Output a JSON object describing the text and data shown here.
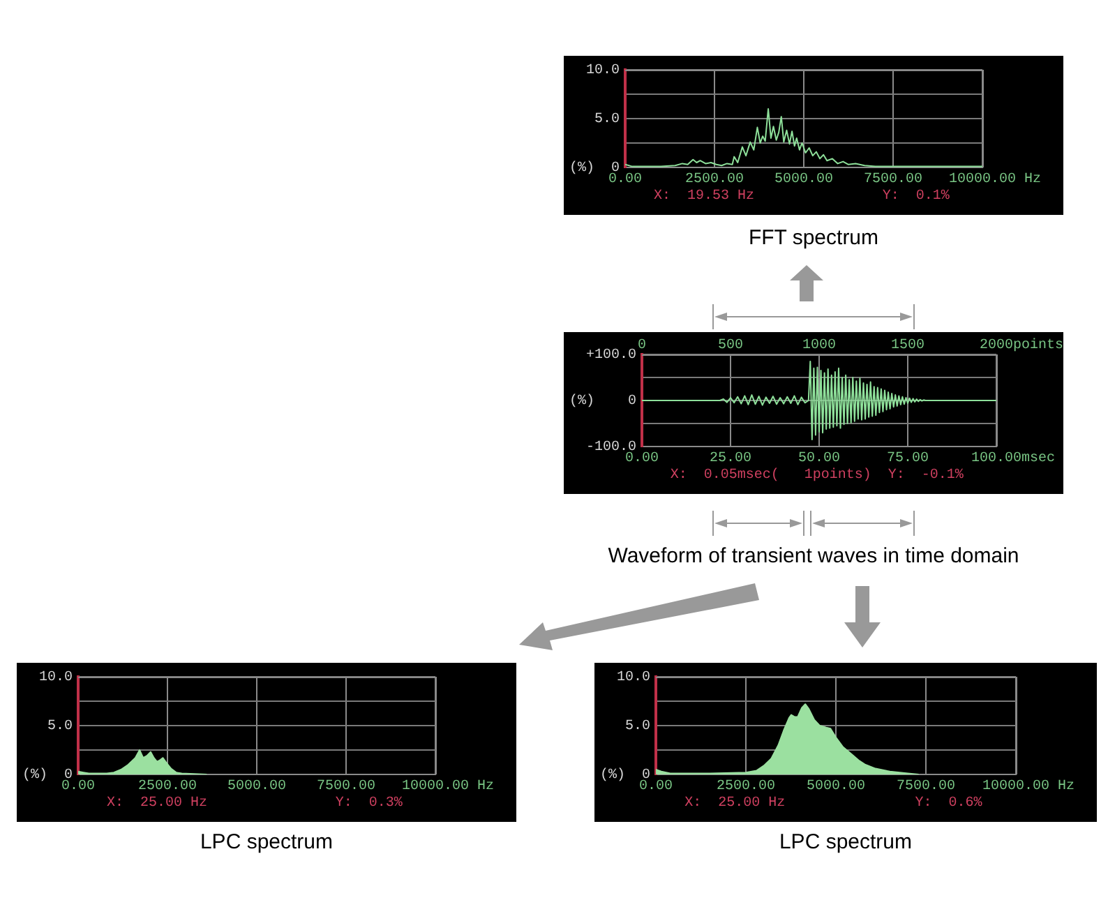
{
  "chart_data": [
    {
      "type": "line",
      "title": "FFT spectrum",
      "ylabel": "(%)",
      "xlabel": "Hz",
      "grid": true,
      "xlim": [
        0,
        10000
      ],
      "ylim": [
        0,
        10
      ],
      "xticks": [
        {
          "value": 0,
          "label": "0.00"
        },
        {
          "value": 2500,
          "label": "2500.00"
        },
        {
          "value": 5000,
          "label": "5000.00"
        },
        {
          "value": 7500,
          "label": "7500.00"
        },
        {
          "value": 10000,
          "label": "10000.00"
        }
      ],
      "yticks": [
        {
          "value": 0,
          "label": "0"
        },
        {
          "value": 2.5,
          "label": null
        },
        {
          "value": 5,
          "label": "5.0"
        },
        {
          "value": 7.5,
          "label": null
        },
        {
          "value": 10,
          "label": "10.0"
        }
      ],
      "annotations": [
        "X:  19.53 Hz",
        "Y:  0.1%"
      ],
      "series": [
        {
          "color": "#8ee09a",
          "x": [
            0,
            200,
            600,
            1000,
            1400,
            1600,
            1750,
            1900,
            2000,
            2100,
            2250,
            2400,
            2550,
            2700,
            2850,
            3000,
            3050,
            3150,
            3280,
            3380,
            3500,
            3600,
            3700,
            3780,
            3850,
            3920,
            4005,
            4080,
            4150,
            4230,
            4300,
            4370,
            4440,
            4520,
            4600,
            4670,
            4740,
            4800,
            4880,
            4950,
            5050,
            5150,
            5250,
            5350,
            5450,
            5550,
            5650,
            5800,
            5950,
            6100,
            6250,
            6450,
            6700,
            7000,
            8000,
            10000
          ],
          "values": [
            0.3,
            0.1,
            0.1,
            0.1,
            0.2,
            0.4,
            0.3,
            0.8,
            0.5,
            0.7,
            0.4,
            0.5,
            0.3,
            0.2,
            0.4,
            0.3,
            1.1,
            0.5,
            2.1,
            1.2,
            2.6,
            1.8,
            4.1,
            2.5,
            3.2,
            2.7,
            6.0,
            3.0,
            4.2,
            2.8,
            3.6,
            5.2,
            2.6,
            3.8,
            2.4,
            3.7,
            2.2,
            3.0,
            1.8,
            2.5,
            1.5,
            2.0,
            1.2,
            1.6,
            0.9,
            1.3,
            0.7,
            0.9,
            0.4,
            0.6,
            0.3,
            0.4,
            0.2,
            0.1,
            0.1,
            0.1
          ]
        }
      ]
    },
    {
      "type": "line",
      "title": "Waveform of transient waves in time domain",
      "ylabel": "(%)",
      "xlabel": "msec",
      "x2label": "points",
      "grid": true,
      "xlim": [
        0,
        100
      ],
      "ylim": [
        -100,
        100
      ],
      "x2lim": [
        0,
        2000
      ],
      "xticks": [
        {
          "value": 0,
          "label": "0.00"
        },
        {
          "value": 25,
          "label": "25.00"
        },
        {
          "value": 50,
          "label": "50.00"
        },
        {
          "value": 75,
          "label": "75.00"
        },
        {
          "value": 100,
          "label": "100.00"
        }
      ],
      "x2ticks": [
        0,
        500,
        1000,
        1500,
        2000
      ],
      "yticks": [
        {
          "value": -100,
          "label": "-100.0"
        },
        {
          "value": -50,
          "label": null
        },
        {
          "value": 0,
          "label": "0"
        },
        {
          "value": 50,
          "label": null
        },
        {
          "value": 100,
          "label": "+100.0"
        }
      ],
      "annotations": [
        "X:  0.05msec(   1points)  Y:  -0.1%"
      ],
      "series": [
        {
          "color": "#8ee09a",
          "x": [
            0,
            22,
            23,
            24,
            25,
            26,
            27,
            28,
            29,
            30,
            31,
            32,
            33,
            34,
            35,
            36,
            37,
            38,
            39,
            40,
            41,
            42,
            43,
            44,
            45,
            46,
            47,
            47.5,
            48,
            48.5,
            49,
            49.5,
            50,
            50.5,
            51,
            51.5,
            52,
            52.5,
            53,
            53.5,
            54,
            54.5,
            55,
            55.5,
            56,
            56.5,
            57,
            57.5,
            58,
            58.5,
            59,
            59.5,
            60,
            60.5,
            61,
            61.5,
            62,
            62.5,
            63,
            63.5,
            64,
            64.5,
            65,
            65.5,
            66,
            66.5,
            67,
            67.5,
            68,
            68.5,
            69,
            69.5,
            70,
            70.5,
            71,
            71.5,
            72,
            72.5,
            73,
            73.5,
            74,
            74.5,
            75,
            75.5,
            76,
            76.5,
            77,
            77.5,
            78,
            78.5,
            79,
            79.5,
            80,
            100
          ],
          "values": [
            0,
            0,
            3,
            -4,
            6,
            -5,
            8,
            -7,
            10,
            -9,
            12,
            -8,
            9,
            -10,
            7,
            -6,
            9,
            -8,
            6,
            -7,
            8,
            -6,
            10,
            -9,
            7,
            -5,
            0,
            85,
            -85,
            70,
            -75,
            72,
            -68,
            65,
            -70,
            60,
            -62,
            68,
            -60,
            55,
            -58,
            62,
            -55,
            70,
            -60,
            50,
            -52,
            55,
            -50,
            45,
            -48,
            50,
            -45,
            42,
            -40,
            48,
            -42,
            38,
            -40,
            35,
            -36,
            40,
            -34,
            30,
            -32,
            28,
            -26,
            25,
            -24,
            22,
            -20,
            18,
            -18,
            15,
            -14,
            12,
            -12,
            10,
            -9,
            8,
            -8,
            6,
            -6,
            5,
            -4,
            4,
            -3,
            3,
            -2,
            2,
            -1,
            1,
            0,
            0
          ]
        }
      ]
    },
    {
      "type": "area",
      "title": "LPC spectrum",
      "ylabel": "(%)",
      "xlabel": "Hz",
      "grid": true,
      "xlim": [
        0,
        10000
      ],
      "ylim": [
        0,
        10
      ],
      "xticks": [
        {
          "value": 0,
          "label": "0.00"
        },
        {
          "value": 2500,
          "label": "2500.00"
        },
        {
          "value": 5000,
          "label": "5000.00"
        },
        {
          "value": 7500,
          "label": "7500.00"
        },
        {
          "value": 10000,
          "label": "10000.00"
        }
      ],
      "yticks": [
        {
          "value": 0,
          "label": "0"
        },
        {
          "value": 2.5,
          "label": null
        },
        {
          "value": 5,
          "label": "5.0"
        },
        {
          "value": 7.5,
          "label": null
        },
        {
          "value": 10,
          "label": "10.0"
        }
      ],
      "annotations": [
        "X:  25.00 Hz",
        "Y:  0.3%"
      ],
      "series": [
        {
          "color": "#9be0a0",
          "x": [
            0,
            150,
            300,
            800,
            1000,
            1200,
            1400,
            1600,
            1720,
            1820,
            1920,
            2030,
            2120,
            2210,
            2300,
            2370,
            2450,
            2600,
            2750,
            2900,
            3600
          ],
          "values": [
            0.3,
            0.2,
            0.1,
            0.1,
            0.2,
            0.5,
            1.0,
            1.7,
            2.5,
            1.7,
            1.9,
            2.3,
            1.7,
            1.3,
            1.5,
            1.7,
            1.3,
            0.6,
            0.2,
            0.1,
            0
          ]
        }
      ]
    },
    {
      "type": "area",
      "title": "LPC spectrum",
      "ylabel": "(%)",
      "xlabel": "Hz",
      "grid": true,
      "xlim": [
        0,
        10000
      ],
      "ylim": [
        0,
        10
      ],
      "xticks": [
        {
          "value": 0,
          "label": "0.00"
        },
        {
          "value": 2500,
          "label": "2500.00"
        },
        {
          "value": 5000,
          "label": "5000.00"
        },
        {
          "value": 7500,
          "label": "7500.00"
        },
        {
          "value": 10000,
          "label": "10000.00"
        }
      ],
      "yticks": [
        {
          "value": 0,
          "label": "0"
        },
        {
          "value": 2.5,
          "label": null
        },
        {
          "value": 5,
          "label": "5.0"
        },
        {
          "value": 7.5,
          "label": null
        },
        {
          "value": 10,
          "label": "10.0"
        }
      ],
      "annotations": [
        "X:  25.00 Hz",
        "Y:  0.6%"
      ],
      "series": [
        {
          "color": "#9be0a0",
          "x": [
            0,
            150,
            400,
            1500,
            2500,
            2800,
            3000,
            3200,
            3400,
            3550,
            3700,
            3760,
            3850,
            3940,
            4050,
            4150,
            4250,
            4400,
            4550,
            4730,
            4850,
            5000,
            5200,
            5460,
            5650,
            5820,
            6100,
            6500,
            7000,
            7300
          ],
          "values": [
            0.5,
            0.3,
            0.1,
            0.1,
            0.2,
            0.4,
            0.9,
            1.6,
            3.0,
            4.5,
            5.8,
            6.1,
            5.9,
            5.9,
            6.8,
            7.2,
            6.7,
            5.6,
            5.0,
            4.8,
            4.7,
            3.8,
            2.8,
            2.0,
            1.4,
            1.0,
            0.6,
            0.3,
            0.1,
            0
          ]
        }
      ]
    }
  ]
}
